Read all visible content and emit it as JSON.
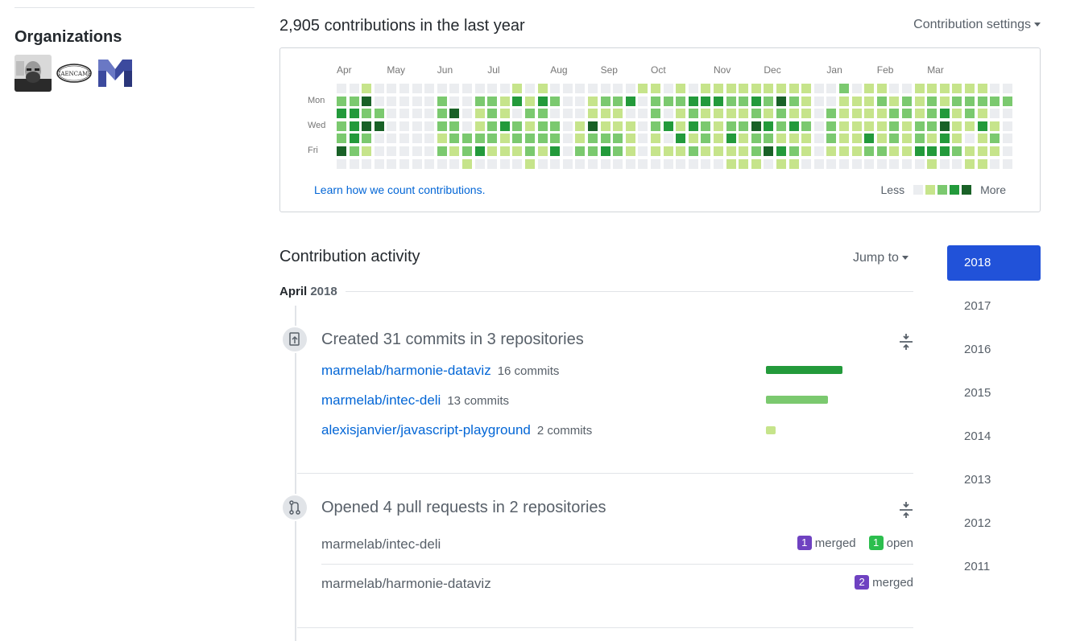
{
  "sidebar": {
    "organizations_title": "Organizations",
    "orgs": [
      {
        "name": "avatar-person"
      },
      {
        "name": "CaenCamp",
        "logo_text": "CAENCAMP"
      },
      {
        "name": "marmelab"
      }
    ]
  },
  "calendar": {
    "title": "2,905 contributions in the last year",
    "settings_label": "Contribution settings",
    "months": [
      {
        "label": "Apr",
        "week": 0
      },
      {
        "label": "May",
        "week": 4
      },
      {
        "label": "Jun",
        "week": 8
      },
      {
        "label": "Jul",
        "week": 12
      },
      {
        "label": "Aug",
        "week": 17
      },
      {
        "label": "Sep",
        "week": 21
      },
      {
        "label": "Oct",
        "week": 25
      },
      {
        "label": "Nov",
        "week": 30
      },
      {
        "label": "Dec",
        "week": 34
      },
      {
        "label": "Jan",
        "week": 39
      },
      {
        "label": "Feb",
        "week": 43
      },
      {
        "label": "Mar",
        "week": 47
      }
    ],
    "day_labels": [
      {
        "label": "Mon",
        "row": 1
      },
      {
        "label": "Wed",
        "row": 3
      },
      {
        "label": "Fri",
        "row": 5
      }
    ],
    "level_colors": [
      "#ebedf0",
      "#c6e48b",
      "#7bc96f",
      "#239a3b",
      "#196127"
    ],
    "weeks": [
      [
        0,
        2,
        3,
        2,
        2,
        4,
        0
      ],
      [
        0,
        2,
        3,
        3,
        3,
        2,
        0
      ],
      [
        1,
        4,
        2,
        4,
        2,
        1,
        0
      ],
      [
        0,
        0,
        2,
        4,
        0,
        0,
        0
      ],
      [
        0,
        0,
        0,
        0,
        0,
        0,
        0
      ],
      [
        0,
        0,
        0,
        0,
        0,
        0,
        0
      ],
      [
        0,
        0,
        0,
        0,
        0,
        0,
        0
      ],
      [
        0,
        0,
        0,
        0,
        0,
        0,
        0
      ],
      [
        0,
        2,
        2,
        2,
        1,
        2,
        0
      ],
      [
        0,
        0,
        4,
        2,
        2,
        1,
        0
      ],
      [
        0,
        0,
        0,
        0,
        2,
        2,
        1
      ],
      [
        0,
        2,
        1,
        1,
        2,
        3,
        0
      ],
      [
        0,
        2,
        2,
        2,
        2,
        1,
        0
      ],
      [
        0,
        1,
        1,
        3,
        1,
        1,
        0
      ],
      [
        1,
        3,
        0,
        2,
        2,
        1,
        0
      ],
      [
        0,
        1,
        2,
        1,
        2,
        2,
        1
      ],
      [
        1,
        3,
        2,
        2,
        2,
        1,
        0
      ],
      [
        0,
        2,
        0,
        2,
        2,
        3,
        0
      ],
      [
        0,
        0,
        0,
        0,
        0,
        0,
        0
      ],
      [
        0,
        0,
        0,
        1,
        1,
        2,
        0
      ],
      [
        0,
        1,
        1,
        4,
        2,
        2,
        0
      ],
      [
        0,
        2,
        1,
        1,
        2,
        3,
        0
      ],
      [
        0,
        2,
        1,
        1,
        2,
        2,
        0
      ],
      [
        0,
        3,
        0,
        1,
        1,
        1,
        0
      ],
      [
        1,
        0,
        0,
        0,
        0,
        0,
        0
      ],
      [
        1,
        2,
        2,
        2,
        1,
        1,
        0
      ],
      [
        0,
        2,
        0,
        3,
        0,
        1,
        0
      ],
      [
        1,
        2,
        1,
        1,
        3,
        1,
        0
      ],
      [
        0,
        3,
        2,
        3,
        1,
        2,
        0
      ],
      [
        1,
        3,
        1,
        2,
        2,
        1,
        0
      ],
      [
        1,
        3,
        1,
        1,
        1,
        1,
        0
      ],
      [
        1,
        2,
        1,
        2,
        3,
        1,
        1
      ],
      [
        1,
        2,
        1,
        2,
        1,
        1,
        1
      ],
      [
        1,
        3,
        2,
        4,
        2,
        2,
        1
      ],
      [
        1,
        2,
        1,
        3,
        2,
        4,
        0
      ],
      [
        1,
        4,
        2,
        2,
        1,
        3,
        1
      ],
      [
        1,
        2,
        1,
        3,
        1,
        2,
        1
      ],
      [
        1,
        1,
        1,
        2,
        1,
        1,
        0
      ],
      [
        0,
        0,
        0,
        0,
        0,
        0,
        0
      ],
      [
        0,
        0,
        2,
        2,
        2,
        1,
        0
      ],
      [
        2,
        1,
        1,
        1,
        1,
        1,
        0
      ],
      [
        0,
        1,
        1,
        1,
        1,
        1,
        0
      ],
      [
        1,
        1,
        1,
        1,
        3,
        2,
        0
      ],
      [
        1,
        2,
        1,
        1,
        1,
        2,
        0
      ],
      [
        0,
        1,
        2,
        2,
        2,
        1,
        0
      ],
      [
        0,
        2,
        2,
        1,
        1,
        1,
        0
      ],
      [
        1,
        1,
        1,
        2,
        2,
        3,
        0
      ],
      [
        1,
        2,
        2,
        2,
        1,
        3,
        1
      ],
      [
        1,
        1,
        3,
        4,
        3,
        3,
        0
      ],
      [
        1,
        2,
        1,
        1,
        1,
        2,
        0
      ],
      [
        1,
        2,
        2,
        1,
        0,
        1,
        1
      ],
      [
        1,
        2,
        1,
        3,
        1,
        1,
        1
      ],
      [
        0,
        2,
        0,
        1,
        2,
        1,
        0
      ],
      [
        0,
        2,
        0,
        0,
        0,
        0,
        0
      ]
    ],
    "learn_link": "Learn how we count contributions.",
    "legend_less": "Less",
    "legend_more": "More"
  },
  "activity": {
    "title": "Contribution activity",
    "jump_to": "Jump to",
    "month": "April",
    "year": "2018",
    "commits": {
      "title": "Created 31 commits in 3 repositories",
      "repos": [
        {
          "name": "marmelab/harmonie-dataviz",
          "count": "16 commits",
          "commits": 16,
          "color": "#239a3b"
        },
        {
          "name": "marmelab/intec-deli",
          "count": "13 commits",
          "commits": 13,
          "color": "#7bc96f"
        },
        {
          "name": "alexisjanvier/javascript-playground",
          "count": "2 commits",
          "commits": 2,
          "color": "#c6e48b"
        }
      ]
    },
    "pull_requests": {
      "title": "Opened 4 pull requests in 2 repositories",
      "repos": [
        {
          "name": "marmelab/intec-deli",
          "merged_count": "1",
          "merged_label": "merged",
          "open_count": "1",
          "open_label": "open"
        },
        {
          "name": "marmelab/harmonie-dataviz",
          "merged_count": "2",
          "merged_label": "merged"
        }
      ]
    }
  },
  "years": [
    "2018",
    "2017",
    "2016",
    "2015",
    "2014",
    "2013",
    "2012",
    "2011"
  ],
  "selected_year": "2018"
}
